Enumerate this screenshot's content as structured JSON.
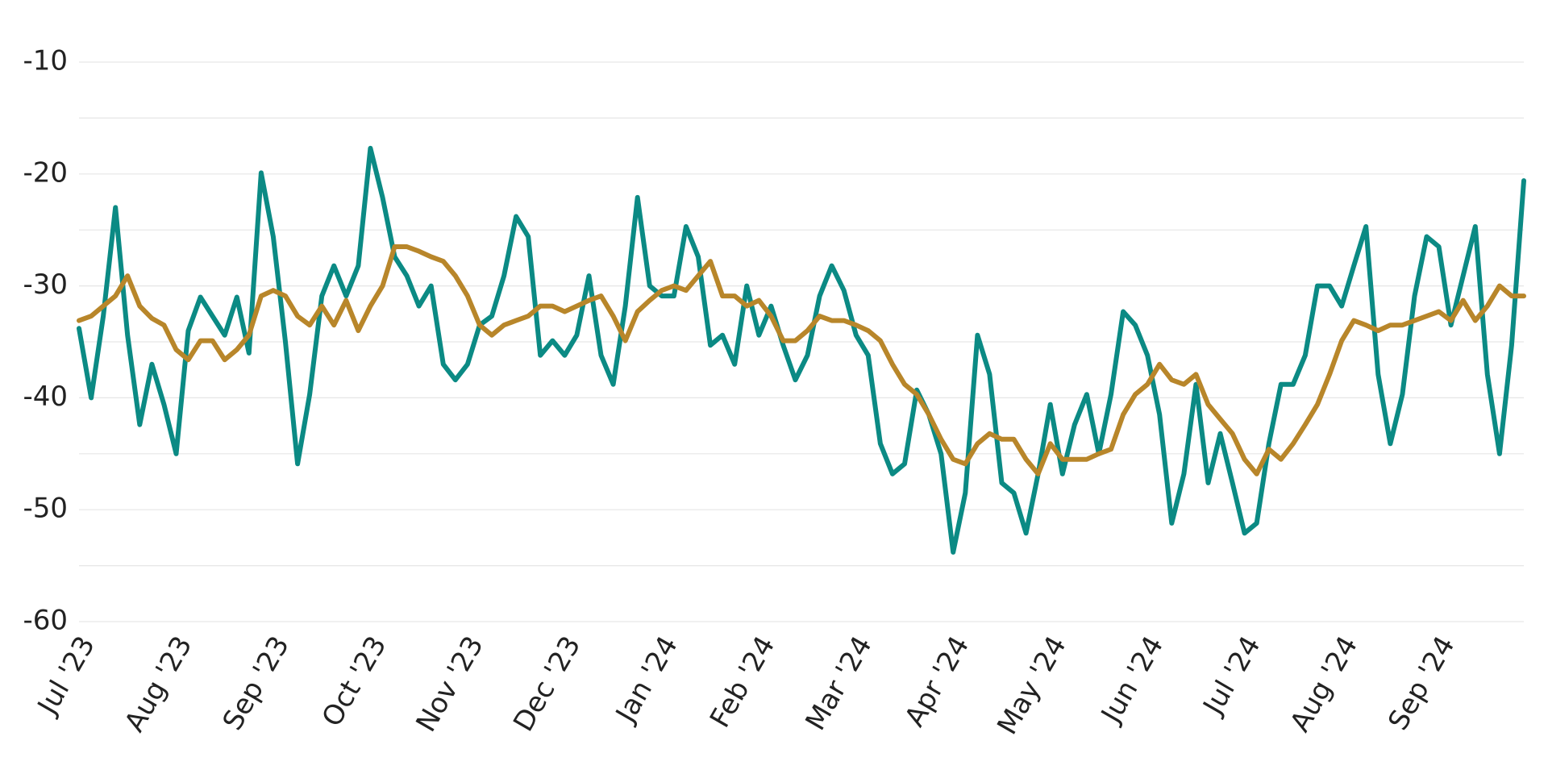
{
  "chart_data": {
    "type": "line",
    "x": [
      0,
      0.125,
      0.25,
      0.375,
      0.5,
      0.625,
      0.75,
      0.875,
      1,
      1.125,
      1.25,
      1.375,
      1.5,
      1.625,
      1.75,
      1.875,
      2,
      2.125,
      2.25,
      2.375,
      2.5,
      2.625,
      2.75,
      2.875,
      3,
      3.125,
      3.25,
      3.375,
      3.5,
      3.625,
      3.75,
      3.875,
      4,
      4.125,
      4.25,
      4.375,
      4.5,
      4.625,
      4.75,
      4.875,
      5,
      5.125,
      5.25,
      5.375,
      5.5,
      5.625,
      5.75,
      5.875,
      6,
      6.125,
      6.25,
      6.375,
      6.5,
      6.625,
      6.75,
      6.875,
      7,
      7.125,
      7.25,
      7.375,
      7.5,
      7.625,
      7.75,
      7.875,
      8,
      8.125,
      8.25,
      8.375,
      8.5,
      8.625,
      8.75,
      8.875,
      9,
      9.125,
      9.25,
      9.375,
      9.5,
      9.625,
      9.75,
      9.875,
      10,
      10.125,
      10.25,
      10.375,
      10.5,
      10.625,
      10.75,
      10.875,
      11,
      11.125,
      11.25,
      11.375,
      11.5,
      11.625,
      11.75,
      11.875,
      12,
      12.125,
      12.25,
      12.375,
      12.5,
      12.625,
      12.75,
      12.875,
      13,
      13.125,
      13.25,
      13.375,
      13.5,
      13.625,
      13.75,
      13.875,
      14,
      14.125,
      14.25,
      14.375,
      14.5,
      14.625,
      14.75,
      14.875
    ],
    "series": [
      {
        "color": "#0b8a84",
        "values": [
          -33.8,
          -40,
          -32.7,
          -23,
          -34.4,
          -42.4,
          -37,
          -40.6,
          -45,
          -34,
          -31,
          -32.7,
          -34.4,
          -31,
          -36,
          -19.9,
          -25.6,
          -35,
          -45.9,
          -39.7,
          -30.9,
          -28.2,
          -30.9,
          -28.2,
          -17.7,
          -22.1,
          -27.4,
          -29.1,
          -31.8,
          -30,
          -37,
          -38.4,
          -37,
          -33.5,
          -32.7,
          -29.1,
          -23.8,
          -25.6,
          -36.2,
          -34.9,
          -36.2,
          -34.4,
          -29.1,
          -36.2,
          -38.8,
          -31.8,
          -22.1,
          -30,
          -30.9,
          -30.9,
          -24.7,
          -27.4,
          -35.3,
          -34.4,
          -37,
          -30,
          -34.4,
          -31.8,
          -35.3,
          -38.4,
          -36.2,
          -30.9,
          -28.2,
          -30.4,
          -34.4,
          -36.2,
          -44.1,
          -46.8,
          -45.9,
          -39.3,
          -41.5,
          -45,
          -53.8,
          -48.5,
          -34.4,
          -37.9,
          -47.6,
          -48.5,
          -52.1,
          -46.8,
          -40.6,
          -46.8,
          -42.4,
          -39.7,
          -45,
          -39.7,
          -32.3,
          -33.5,
          -36.2,
          -41.5,
          -51.2,
          -46.8,
          -38.8,
          -47.6,
          -43.2,
          -47.6,
          -52.1,
          -51.2,
          -44.1,
          -38.8,
          -38.8,
          -36.2,
          -30,
          -30,
          -31.8,
          -28.2,
          -24.7,
          -37.9,
          -44.1,
          -39.7,
          -30.9,
          -25.6,
          -26.5,
          -33.5,
          -29.1,
          -24.7,
          -37.9,
          -45,
          -35.3,
          -20.6
        ]
      },
      {
        "color": "#b8862a",
        "values": [
          -33.1,
          -32.7,
          -31.8,
          -30.9,
          -29.1,
          -31.8,
          -32.9,
          -33.5,
          -35.7,
          -36.6,
          -34.9,
          -34.9,
          -36.6,
          -35.7,
          -34.4,
          -30.9,
          -30.4,
          -30.9,
          -32.7,
          -33.5,
          -31.8,
          -33.5,
          -31.3,
          -34,
          -31.8,
          -30,
          -26.5,
          -26.5,
          -26.9,
          -27.4,
          -27.8,
          -29.1,
          -30.9,
          -33.5,
          -34.4,
          -33.5,
          -33.1,
          -32.7,
          -31.8,
          -31.8,
          -32.3,
          -31.8,
          -31.3,
          -30.9,
          -32.7,
          -34.9,
          -32.3,
          -31.3,
          -30.4,
          -30,
          -30.4,
          -29.1,
          -27.8,
          -30.9,
          -30.9,
          -31.8,
          -31.3,
          -32.7,
          -34.9,
          -34.9,
          -34,
          -32.7,
          -33.1,
          -33.1,
          -33.5,
          -34,
          -34.9,
          -37,
          -38.8,
          -39.7,
          -41.5,
          -43.7,
          -45.5,
          -45.9,
          -44.1,
          -43.2,
          -43.7,
          -43.7,
          -45.5,
          -46.8,
          -44.1,
          -45.5,
          -45.5,
          -45.5,
          -45,
          -44.6,
          -41.5,
          -39.7,
          -38.8,
          -37,
          -38.4,
          -38.8,
          -37.9,
          -40.6,
          -41.9,
          -43.2,
          -45.5,
          -46.8,
          -44.6,
          -45.5,
          -44.1,
          -42.4,
          -40.6,
          -37.9,
          -34.9,
          -33.1,
          -33.5,
          -34,
          -33.5,
          -33.5,
          -33.1,
          -32.7,
          -32.3,
          -33.1,
          -31.3,
          -33.1,
          -31.8,
          -30,
          -30.9,
          -30.9
        ]
      }
    ],
    "xlim": [
      0,
      14.875
    ],
    "xticks": [
      {
        "value": 0,
        "label": "Jul '23"
      },
      {
        "value": 1,
        "label": "Aug '23"
      },
      {
        "value": 2,
        "label": "Sep '23"
      },
      {
        "value": 3,
        "label": "Oct '23"
      },
      {
        "value": 4,
        "label": "Nov '23"
      },
      {
        "value": 5,
        "label": "Dec '23"
      },
      {
        "value": 6,
        "label": "Jan '24"
      },
      {
        "value": 7,
        "label": "Feb '24"
      },
      {
        "value": 8,
        "label": "Mar '24"
      },
      {
        "value": 9,
        "label": "Apr '24"
      },
      {
        "value": 10,
        "label": "May '24"
      },
      {
        "value": 11,
        "label": "Jun '24"
      },
      {
        "value": 12,
        "label": "Jul '24"
      },
      {
        "value": 13,
        "label": "Aug '24"
      },
      {
        "value": 14,
        "label": "Sep '24"
      }
    ],
    "ylim": [
      -60,
      -10
    ],
    "yticks": [
      -10,
      -20,
      -30,
      -40,
      -50,
      -60
    ],
    "ygrid": [
      -10,
      -15,
      -20,
      -25,
      -30,
      -35,
      -40,
      -45,
      -50,
      -55,
      -60
    ],
    "grid": true
  }
}
